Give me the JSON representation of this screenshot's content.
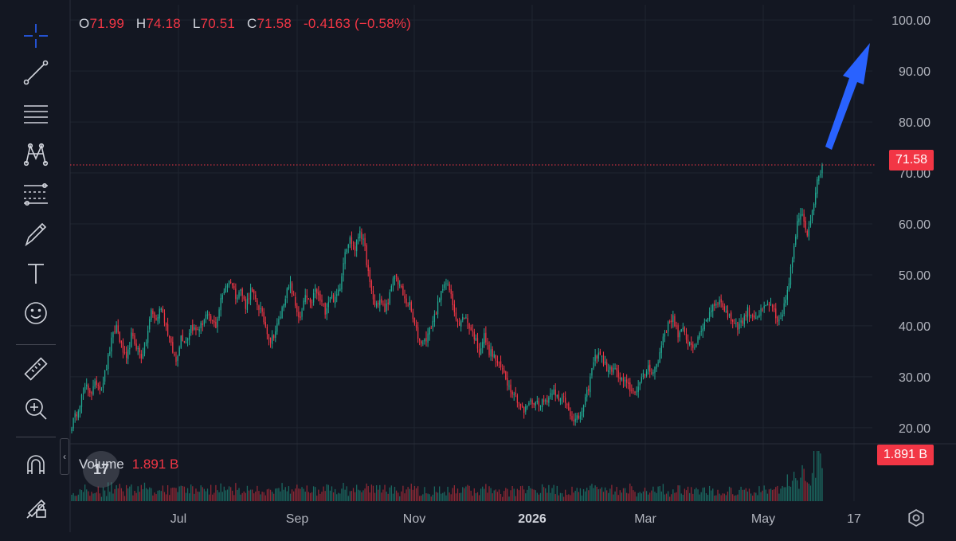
{
  "toolbar": {
    "tools": [
      {
        "name": "crosshair-icon"
      },
      {
        "name": "trend-line-icon"
      },
      {
        "name": "horizontal-lines-icon"
      },
      {
        "name": "pattern-icon"
      },
      {
        "name": "fib-levels-icon"
      },
      {
        "name": "brush-icon"
      },
      {
        "name": "text-icon"
      },
      {
        "name": "emoji-icon"
      },
      {
        "name": "ruler-icon"
      },
      {
        "name": "zoom-in-icon"
      },
      {
        "name": "magnet-icon"
      },
      {
        "name": "lock-drawings-icon"
      }
    ]
  },
  "legend": {
    "o_label": "O",
    "o_value": "71.99",
    "h_label": "H",
    "h_value": "74.18",
    "l_label": "L",
    "l_value": "70.51",
    "c_label": "C",
    "c_value": "71.58",
    "change": "-0.4163 (−0.58%)"
  },
  "volume": {
    "label": "Volume",
    "value": "1.891 B",
    "tag": "1.891 B"
  },
  "last_price_tag": "71.58",
  "colors": {
    "background": "#131722",
    "up": "#22ab94",
    "down": "#f23645",
    "grid": "#1f2430",
    "arrow": "#2962ff",
    "text": "#b2b5be"
  },
  "chart_data": {
    "type": "candlestick",
    "y_ticks": [
      "20.00",
      "30.00",
      "40.00",
      "50.00",
      "60.00",
      "70.00",
      "80.00",
      "90.00",
      "100.00"
    ],
    "x_ticks": [
      "Jul",
      "Sep",
      "Nov",
      "2026",
      "Mar",
      "May",
      "17"
    ],
    "ylim": [
      17,
      103
    ],
    "last_price": 71.58,
    "points": [
      [
        0,
        20.5
      ],
      [
        3,
        23
      ],
      [
        6,
        26
      ],
      [
        9,
        28
      ],
      [
        12,
        27
      ],
      [
        15,
        29
      ],
      [
        18,
        28
      ],
      [
        21,
        32
      ],
      [
        24,
        37
      ],
      [
        27,
        40
      ],
      [
        30,
        36
      ],
      [
        33,
        33
      ],
      [
        36,
        38
      ],
      [
        39,
        36
      ],
      [
        42,
        34
      ],
      [
        45,
        37
      ],
      [
        48,
        43
      ],
      [
        51,
        41
      ],
      [
        54,
        44
      ],
      [
        57,
        40
      ],
      [
        60,
        36
      ],
      [
        63,
        33
      ],
      [
        66,
        38
      ],
      [
        69,
        37
      ],
      [
        72,
        40
      ],
      [
        75,
        39
      ],
      [
        78,
        40
      ],
      [
        81,
        42
      ],
      [
        84,
        41
      ],
      [
        87,
        40
      ],
      [
        90,
        45
      ],
      [
        93,
        48
      ],
      [
        96,
        49
      ],
      [
        99,
        46
      ],
      [
        102,
        47
      ],
      [
        105,
        44
      ],
      [
        108,
        47
      ],
      [
        111,
        45
      ],
      [
        114,
        43
      ],
      [
        117,
        40
      ],
      [
        120,
        37
      ],
      [
        123,
        39
      ],
      [
        126,
        42
      ],
      [
        129,
        46
      ],
      [
        132,
        48
      ],
      [
        135,
        44
      ],
      [
        138,
        41
      ],
      [
        141,
        46
      ],
      [
        144,
        44
      ],
      [
        147,
        47
      ],
      [
        150,
        45
      ],
      [
        153,
        43
      ],
      [
        156,
        46
      ],
      [
        159,
        45
      ],
      [
        162,
        48
      ],
      [
        165,
        55
      ],
      [
        168,
        57
      ],
      [
        171,
        55
      ],
      [
        174,
        59
      ],
      [
        177,
        55
      ],
      [
        180,
        48
      ],
      [
        183,
        44
      ],
      [
        186,
        45
      ],
      [
        189,
        43
      ],
      [
        192,
        46
      ],
      [
        195,
        50
      ],
      [
        198,
        48
      ],
      [
        201,
        45
      ],
      [
        204,
        44
      ],
      [
        207,
        40
      ],
      [
        210,
        37
      ],
      [
        213,
        37
      ],
      [
        216,
        39
      ],
      [
        219,
        42
      ],
      [
        222,
        45
      ],
      [
        225,
        49
      ],
      [
        228,
        47
      ],
      [
        231,
        43
      ],
      [
        234,
        40
      ],
      [
        237,
        42
      ],
      [
        240,
        40
      ],
      [
        243,
        38
      ],
      [
        246,
        35
      ],
      [
        249,
        38
      ],
      [
        252,
        35
      ],
      [
        255,
        34
      ],
      [
        258,
        32
      ],
      [
        261,
        31
      ],
      [
        264,
        28
      ],
      [
        267,
        27
      ],
      [
        270,
        25
      ],
      [
        273,
        23
      ],
      [
        276,
        25
      ],
      [
        279,
        25
      ],
      [
        282,
        25
      ],
      [
        285,
        25
      ],
      [
        288,
        26
      ],
      [
        291,
        28
      ],
      [
        294,
        25
      ],
      [
        297,
        26
      ],
      [
        300,
        24
      ],
      [
        303,
        21
      ],
      [
        306,
        22
      ],
      [
        309,
        24
      ],
      [
        312,
        28
      ],
      [
        315,
        33
      ],
      [
        318,
        35
      ],
      [
        321,
        33
      ],
      [
        324,
        31
      ],
      [
        327,
        32
      ],
      [
        330,
        30
      ],
      [
        333,
        29
      ],
      [
        336,
        28
      ],
      [
        339,
        27
      ],
      [
        342,
        28
      ],
      [
        345,
        30
      ],
      [
        348,
        32
      ],
      [
        351,
        31
      ],
      [
        354,
        33
      ],
      [
        357,
        38
      ],
      [
        360,
        40
      ],
      [
        363,
        42
      ],
      [
        366,
        38
      ],
      [
        369,
        39
      ],
      [
        372,
        37
      ],
      [
        375,
        36
      ],
      [
        378,
        37
      ],
      [
        381,
        40
      ],
      [
        384,
        42
      ],
      [
        387,
        44
      ],
      [
        390,
        45
      ],
      [
        393,
        44
      ],
      [
        396,
        42
      ],
      [
        399,
        41
      ],
      [
        402,
        40
      ],
      [
        405,
        41
      ],
      [
        408,
        43
      ],
      [
        411,
        42
      ],
      [
        414,
        42
      ],
      [
        417,
        43
      ],
      [
        420,
        44
      ],
      [
        423,
        44
      ],
      [
        426,
        40
      ],
      [
        429,
        42
      ],
      [
        432,
        47
      ],
      [
        435,
        53
      ],
      [
        438,
        60
      ],
      [
        441,
        62
      ],
      [
        444,
        58
      ],
      [
        447,
        63
      ],
      [
        450,
        68
      ],
      [
        453,
        71.6
      ]
    ]
  }
}
